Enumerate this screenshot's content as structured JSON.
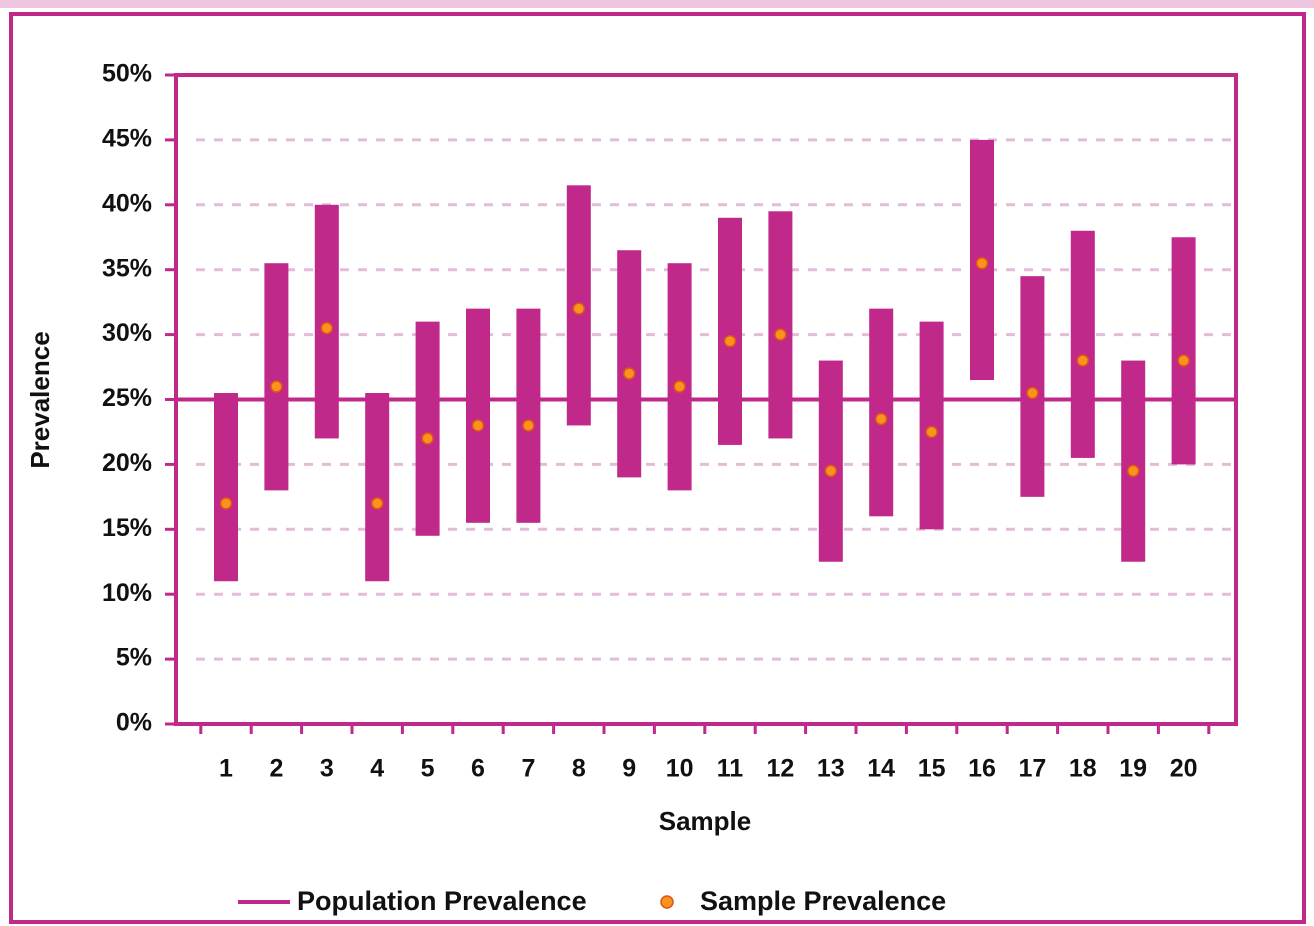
{
  "chart_data": {
    "type": "interval",
    "x_label": "Sample",
    "y_label": "Prevalence",
    "categories": [
      "1",
      "2",
      "3",
      "4",
      "5",
      "6",
      "7",
      "8",
      "9",
      "10",
      "11",
      "12",
      "13",
      "14",
      "15",
      "16",
      "17",
      "18",
      "19",
      "20"
    ],
    "intervals": {
      "color": "#c0288a",
      "lower": [
        11,
        18,
        22,
        11,
        14.5,
        15.5,
        15.5,
        23,
        19,
        18,
        21.5,
        22,
        12.5,
        16,
        15,
        26.5,
        17.5,
        20.5,
        12.5,
        20
      ],
      "upper": [
        25.5,
        35.5,
        40,
        25.5,
        31,
        32,
        32,
        41.5,
        36.5,
        35.5,
        39,
        39.5,
        28,
        32,
        31,
        45,
        34.5,
        38,
        28,
        37.5
      ]
    },
    "reference_line": {
      "name": "Population Prevalence",
      "color": "#c0288a",
      "value": 25
    },
    "series": [
      {
        "name": "Sample Prevalence",
        "color": "#f7941d",
        "values": [
          17,
          26,
          30.5,
          17,
          22,
          23,
          23,
          32,
          27,
          26,
          29.5,
          30,
          19.5,
          23.5,
          22.5,
          35.5,
          25.5,
          28,
          19.5,
          28
        ]
      }
    ],
    "ylim": [
      0,
      50
    ],
    "yticks": [
      {
        "value": 0,
        "label": "0%"
      },
      {
        "value": 5,
        "label": "5%"
      },
      {
        "value": 10,
        "label": "10%"
      },
      {
        "value": 15,
        "label": "15%"
      },
      {
        "value": 20,
        "label": "20%"
      },
      {
        "value": 25,
        "label": "25%"
      },
      {
        "value": 30,
        "label": "30%"
      },
      {
        "value": 35,
        "label": "35%"
      },
      {
        "value": 40,
        "label": "40%"
      },
      {
        "value": 45,
        "label": "45%"
      },
      {
        "value": 50,
        "label": "50%"
      }
    ],
    "grid": true
  }
}
